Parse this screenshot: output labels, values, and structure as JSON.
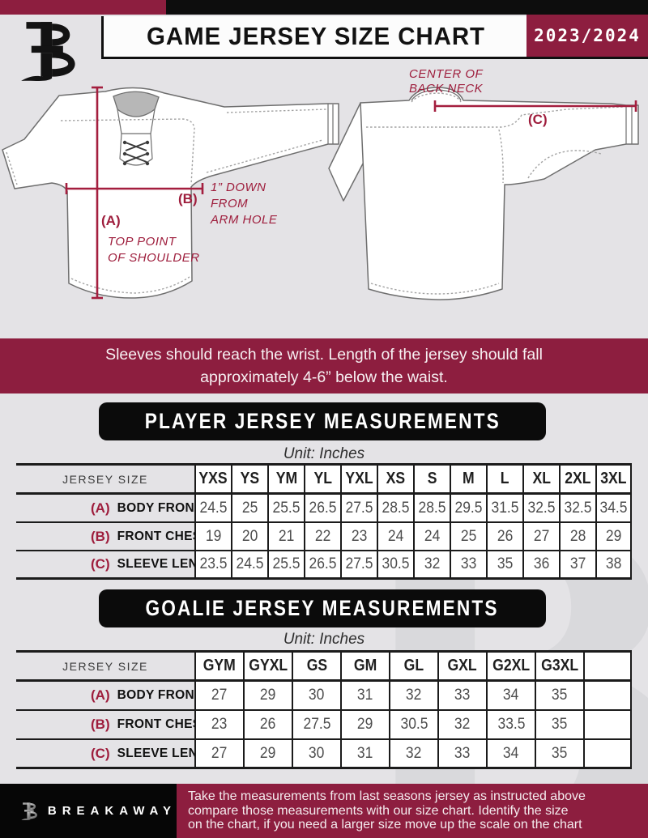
{
  "header": {
    "title": "GAME JERSEY SIZE CHART",
    "season": "2023/2024"
  },
  "diagram": {
    "front": {
      "label_a": "(A)",
      "label_a_note1": "TOP POINT",
      "label_a_note2": "OF SHOULDER",
      "label_b": "(B)",
      "label_b_note1": "1” DOWN",
      "label_b_note2": "FROM",
      "label_b_note3": "ARM HOLE"
    },
    "back": {
      "label_c": "(C)",
      "note1": "CENTER OF",
      "note2": "BACK NECK"
    }
  },
  "notice_banner": {
    "line1": "Sleeves should reach the wrist. Length of the jersey should fall",
    "line2": "approximately 4-6” below the waist."
  },
  "player_section": {
    "title": "PLAYER JERSEY MEASUREMENTS",
    "unit": "Unit: Inches"
  },
  "player_table": {
    "header": [
      "JERSEY SIZE",
      "YXS",
      "YS",
      "YM",
      "YL",
      "YXL",
      "XS",
      "S",
      "M",
      "L",
      "XL",
      "2XL",
      "3XL"
    ],
    "rows": [
      {
        "key": "(A)",
        "label": "BODY FRONT",
        "values": [
          "24.5",
          "25",
          "25.5",
          "26.5",
          "27.5",
          "28.5",
          "28.5",
          "29.5",
          "31.5",
          "32.5",
          "32.5",
          "34.5"
        ]
      },
      {
        "key": "(B)",
        "label": "FRONT CHEST",
        "values": [
          "19",
          "20",
          "21",
          "22",
          "23",
          "24",
          "24",
          "25",
          "26",
          "27",
          "28",
          "29"
        ]
      },
      {
        "key": "(C)",
        "label": "SLEEVE LENGTH",
        "values": [
          "23.5",
          "24.5",
          "25.5",
          "26.5",
          "27.5",
          "30.5",
          "32",
          "33",
          "35",
          "36",
          "37",
          "38"
        ]
      }
    ]
  },
  "goalie_section": {
    "title": "GOALIE JERSEY MEASUREMENTS",
    "unit": "Unit: Inches"
  },
  "goalie_table": {
    "header": [
      "JERSEY SIZE",
      "GYM",
      "GYXL",
      "GS",
      "GM",
      "GL",
      "GXL",
      "G2XL",
      "G3XL",
      ""
    ],
    "rows": [
      {
        "key": "(A)",
        "label": "BODY FRONT",
        "values": [
          "27",
          "29",
          "30",
          "31",
          "32",
          "33",
          "34",
          "35",
          ""
        ]
      },
      {
        "key": "(B)",
        "label": "FRONT CHEST",
        "values": [
          "23",
          "26",
          "27.5",
          "29",
          "30.5",
          "32",
          "33.5",
          "35",
          ""
        ]
      },
      {
        "key": "(C)",
        "label": "SLEEVE LENGTH",
        "values": [
          "27",
          "29",
          "30",
          "31",
          "32",
          "33",
          "34",
          "35",
          ""
        ]
      }
    ]
  },
  "footer": {
    "brand": "BREAKAWAY",
    "line1": "Take the measurements from last seasons jersey as instructed above",
    "line2": "compare those measurements  with our size chart. Identify the size",
    "line3": "on the chart, if you need a larger size move up the scale on the chart",
    "watermark_letter": "B"
  },
  "colors": {
    "maroon": "#8d1e3f",
    "measure_line": "#a41e3e",
    "black": "#0d0d0d"
  }
}
